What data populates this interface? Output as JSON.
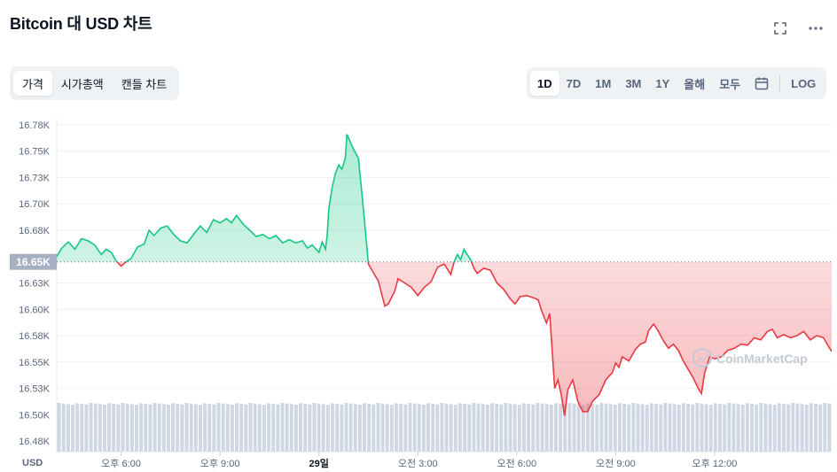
{
  "title": "Bitcoin 대 USD 차트",
  "icons": {
    "fullscreen": "fullscreen-icon",
    "more": "more-icon",
    "calendar": "calendar-icon"
  },
  "metric_tabs": [
    {
      "label": "가격",
      "active": true
    },
    {
      "label": "시가총액",
      "active": false
    },
    {
      "label": "캔들 차트",
      "active": false
    }
  ],
  "range_tabs": [
    {
      "label": "1D",
      "active": true
    },
    {
      "label": "7D",
      "active": false
    },
    {
      "label": "1M",
      "active": false
    },
    {
      "label": "3M",
      "active": false
    },
    {
      "label": "1Y",
      "active": false
    },
    {
      "label": "올해",
      "active": false
    },
    {
      "label": "모두",
      "active": false
    }
  ],
  "log_label": "LOG",
  "currency_label": "USD",
  "watermark": "CoinMarketCap",
  "colors": {
    "up": "#16c784",
    "down": "#ea3943",
    "volume": "#cfd6e4",
    "grid": "#eff2f5"
  },
  "chart_data": {
    "type": "line",
    "title": "",
    "xlabel": "",
    "ylabel": "",
    "baseline": {
      "value": 16650,
      "label": "16.65K"
    },
    "y_ticks": [
      {
        "value": 16780,
        "label": "16.78K"
      },
      {
        "value": 16755,
        "label": "16.75K"
      },
      {
        "value": 16730,
        "label": "16.73K"
      },
      {
        "value": 16705,
        "label": "16.70K"
      },
      {
        "value": 16680,
        "label": "16.68K"
      },
      {
        "value": 16630,
        "label": "16.63K"
      },
      {
        "value": 16605,
        "label": "16.60K"
      },
      {
        "value": 16580,
        "label": "16.58K"
      },
      {
        "value": 16555,
        "label": "16.55K"
      },
      {
        "value": 16530,
        "label": "16.53K"
      },
      {
        "value": 16505,
        "label": "16.50K"
      },
      {
        "value": 16480,
        "label": "16.48K"
      }
    ],
    "ylim": [
      16470,
      16785
    ],
    "x_ticks": [
      {
        "hour": 18,
        "label": "오후 6:00",
        "bold": false
      },
      {
        "hour": 21,
        "label": "오후 9:00",
        "bold": false
      },
      {
        "hour": 24,
        "label": "29일",
        "bold": true
      },
      {
        "hour": 27,
        "label": "오전 3:00",
        "bold": false
      },
      {
        "hour": 30,
        "label": "오전 6:00",
        "bold": false
      },
      {
        "hour": 33,
        "label": "오전 9:00",
        "bold": false
      },
      {
        "hour": 36,
        "label": "오후 12:00",
        "bold": false
      }
    ],
    "xlim": [
      16.05,
      39.55
    ],
    "x_unit": "hours since 28일 00:00",
    "series": [
      {
        "values": [
          [
            16.05,
            16655
          ],
          [
            16.2,
            16663
          ],
          [
            16.4,
            16669
          ],
          [
            16.6,
            16662
          ],
          [
            16.8,
            16672
          ],
          [
            17.0,
            16670
          ],
          [
            17.2,
            16666
          ],
          [
            17.4,
            16657
          ],
          [
            17.55,
            16662
          ],
          [
            17.7,
            16659
          ],
          [
            17.85,
            16651
          ],
          [
            18.0,
            16646
          ],
          [
            18.15,
            16650
          ],
          [
            18.3,
            16653
          ],
          [
            18.5,
            16664
          ],
          [
            18.7,
            16667
          ],
          [
            18.85,
            16680
          ],
          [
            19.0,
            16675
          ],
          [
            19.2,
            16682
          ],
          [
            19.4,
            16684
          ],
          [
            19.6,
            16676
          ],
          [
            19.8,
            16670
          ],
          [
            20.0,
            16668
          ],
          [
            20.2,
            16676
          ],
          [
            20.4,
            16684
          ],
          [
            20.6,
            16678
          ],
          [
            20.8,
            16690
          ],
          [
            21.0,
            16687
          ],
          [
            21.2,
            16691
          ],
          [
            21.35,
            16687
          ],
          [
            21.5,
            16694
          ],
          [
            21.7,
            16686
          ],
          [
            21.9,
            16680
          ],
          [
            22.1,
            16674
          ],
          [
            22.3,
            16676
          ],
          [
            22.5,
            16672
          ],
          [
            22.7,
            16675
          ],
          [
            22.9,
            16668
          ],
          [
            23.1,
            16671
          ],
          [
            23.3,
            16668
          ],
          [
            23.5,
            16670
          ],
          [
            23.65,
            16663
          ],
          [
            23.8,
            16666
          ],
          [
            24.0,
            16659
          ],
          [
            24.1,
            16669
          ],
          [
            24.2,
            16662
          ],
          [
            24.25,
            16675
          ],
          [
            24.3,
            16700
          ],
          [
            24.4,
            16720
          ],
          [
            24.5,
            16734
          ],
          [
            24.6,
            16742
          ],
          [
            24.7,
            16738
          ],
          [
            24.8,
            16748
          ],
          [
            24.85,
            16771
          ],
          [
            25.0,
            16760
          ],
          [
            25.2,
            16748
          ],
          [
            25.35,
            16700
          ],
          [
            25.5,
            16648
          ],
          [
            25.65,
            16640
          ],
          [
            25.8,
            16632
          ],
          [
            26.0,
            16608
          ],
          [
            26.1,
            16610
          ],
          [
            26.3,
            16622
          ],
          [
            26.4,
            16634
          ],
          [
            26.6,
            16630
          ],
          [
            26.8,
            16626
          ],
          [
            27.0,
            16618
          ],
          [
            27.2,
            16626
          ],
          [
            27.4,
            16631
          ],
          [
            27.6,
            16645
          ],
          [
            27.8,
            16648
          ],
          [
            28.0,
            16638
          ],
          [
            28.1,
            16650
          ],
          [
            28.2,
            16657
          ],
          [
            28.3,
            16652
          ],
          [
            28.4,
            16662
          ],
          [
            28.5,
            16657
          ],
          [
            28.6,
            16652
          ],
          [
            28.7,
            16644
          ],
          [
            28.8,
            16639
          ],
          [
            29.0,
            16644
          ],
          [
            29.2,
            16642
          ],
          [
            29.4,
            16630
          ],
          [
            29.6,
            16624
          ],
          [
            29.8,
            16615
          ],
          [
            29.95,
            16610
          ],
          [
            30.1,
            16617
          ],
          [
            30.3,
            16618
          ],
          [
            30.5,
            16616
          ],
          [
            30.65,
            16614
          ],
          [
            30.75,
            16604
          ],
          [
            30.9,
            16592
          ],
          [
            31.0,
            16601
          ],
          [
            31.15,
            16530
          ],
          [
            31.25,
            16538
          ],
          [
            31.35,
            16524
          ],
          [
            31.45,
            16504
          ],
          [
            31.55,
            16529
          ],
          [
            31.7,
            16538
          ],
          [
            31.85,
            16518
          ],
          [
            32.0,
            16508
          ],
          [
            32.15,
            16508
          ],
          [
            32.3,
            16518
          ],
          [
            32.5,
            16524
          ],
          [
            32.7,
            16538
          ],
          [
            32.9,
            16545
          ],
          [
            33.0,
            16554
          ],
          [
            33.1,
            16550
          ],
          [
            33.2,
            16560
          ],
          [
            33.4,
            16556
          ],
          [
            33.6,
            16567
          ],
          [
            33.75,
            16572
          ],
          [
            33.9,
            16574
          ],
          [
            34.0,
            16585
          ],
          [
            34.15,
            16591
          ],
          [
            34.3,
            16584
          ],
          [
            34.45,
            16575
          ],
          [
            34.6,
            16568
          ],
          [
            34.75,
            16572
          ],
          [
            34.9,
            16566
          ],
          [
            35.05,
            16556
          ],
          [
            35.2,
            16548
          ],
          [
            35.35,
            16540
          ],
          [
            35.5,
            16530
          ],
          [
            35.6,
            16525
          ],
          [
            35.7,
            16545
          ],
          [
            35.85,
            16560
          ],
          [
            36.0,
            16558
          ],
          [
            36.2,
            16560
          ],
          [
            36.4,
            16566
          ],
          [
            36.6,
            16568
          ],
          [
            36.8,
            16572
          ],
          [
            37.0,
            16571
          ],
          [
            37.2,
            16578
          ],
          [
            37.4,
            16576
          ],
          [
            37.6,
            16584
          ],
          [
            37.75,
            16586
          ],
          [
            37.9,
            16578
          ],
          [
            38.1,
            16581
          ],
          [
            38.3,
            16578
          ],
          [
            38.5,
            16580
          ],
          [
            38.7,
            16584
          ],
          [
            38.9,
            16576
          ],
          [
            39.1,
            16580
          ],
          [
            39.3,
            16578
          ],
          [
            39.45,
            16570
          ],
          [
            39.55,
            16565
          ]
        ]
      }
    ],
    "volume_bar_count": 170
  }
}
